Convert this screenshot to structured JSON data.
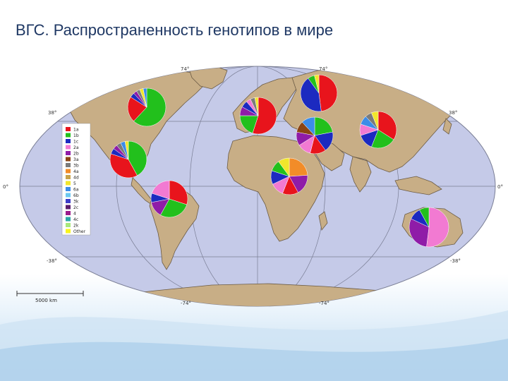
{
  "title": "ВГС. Распространенность генотипов в мире",
  "colors": {
    "ocean": "#c5cae8",
    "land": "#c8ae86",
    "border": "#6b5b45",
    "grid": "#7a7e95",
    "title": "#1f3864"
  },
  "lat_labels": {
    "top": "74°",
    "top_right": "74°",
    "upper_left": "38°",
    "upper_right": "38°",
    "equator_left": "0°",
    "equator_right": "0°",
    "lower_left": "-38°",
    "lower_right": "-38°",
    "bottom_left": "-74°",
    "bottom_right": "-74°"
  },
  "legend": {
    "items": [
      {
        "label": "1a",
        "color": "#e8141c"
      },
      {
        "label": "1b",
        "color": "#22c01c"
      },
      {
        "label": "1c",
        "color": "#1c2ac0"
      },
      {
        "label": "2a",
        "color": "#f27ad2"
      },
      {
        "label": "2b",
        "color": "#8f1ca8"
      },
      {
        "label": "3a",
        "color": "#8b4513"
      },
      {
        "label": "3b",
        "color": "#7b7b7b"
      },
      {
        "label": "4a",
        "color": "#f28c28"
      },
      {
        "label": "4d",
        "color": "#c8a24a"
      },
      {
        "label": "5",
        "color": "#f2e62c"
      },
      {
        "label": "6a",
        "color": "#3c8ce8"
      },
      {
        "label": "6b",
        "color": "#6cc8f0"
      },
      {
        "label": "3k",
        "color": "#3c3cc8"
      },
      {
        "label": "2c",
        "color": "#5a1c6c"
      },
      {
        "label": "4",
        "color": "#9c1c8c"
      },
      {
        "label": "4c",
        "color": "#2ca8a8"
      },
      {
        "label": "2k",
        "color": "#a8e87c"
      },
      {
        "label": "Other",
        "color": "#f8f41c"
      }
    ]
  },
  "scale_bar": {
    "label": "5000 km"
  },
  "pies": [
    {
      "id": "north-america-north",
      "slices": [
        {
          "color": "#22c01c",
          "value": 62
        },
        {
          "color": "#e8141c",
          "value": 22
        },
        {
          "color": "#1c2ac0",
          "value": 4
        },
        {
          "color": "#8f1ca8",
          "value": 3
        },
        {
          "color": "#7b7b7b",
          "value": 3
        },
        {
          "color": "#f2e62c",
          "value": 3
        },
        {
          "color": "#3c8ce8",
          "value": 3
        }
      ]
    },
    {
      "id": "north-america-south",
      "slices": [
        {
          "color": "#22c01c",
          "value": 42
        },
        {
          "color": "#e8141c",
          "value": 38
        },
        {
          "color": "#1c2ac0",
          "value": 5
        },
        {
          "color": "#8f1ca8",
          "value": 4
        },
        {
          "color": "#7b7b7b",
          "value": 4
        },
        {
          "color": "#3c8ce8",
          "value": 4
        },
        {
          "color": "#f2e62c",
          "value": 3
        }
      ]
    },
    {
      "id": "south-america",
      "slices": [
        {
          "color": "#e8141c",
          "value": 30
        },
        {
          "color": "#22c01c",
          "value": 28
        },
        {
          "color": "#8f1ca8",
          "value": 14
        },
        {
          "color": "#1c2ac0",
          "value": 8
        },
        {
          "color": "#f27ad2",
          "value": 20
        }
      ]
    },
    {
      "id": "western-europe",
      "slices": [
        {
          "color": "#e8141c",
          "value": 55
        },
        {
          "color": "#22c01c",
          "value": 20
        },
        {
          "color": "#8f1ca8",
          "value": 8
        },
        {
          "color": "#1c2ac0",
          "value": 6
        },
        {
          "color": "#f27ad2",
          "value": 4
        },
        {
          "color": "#7b7b7b",
          "value": 4
        },
        {
          "color": "#f2e62c",
          "value": 3
        }
      ]
    },
    {
      "id": "russia",
      "slices": [
        {
          "color": "#e8141c",
          "value": 48
        },
        {
          "color": "#1c2ac0",
          "value": 42
        },
        {
          "color": "#22c01c",
          "value": 6
        },
        {
          "color": "#f2e62c",
          "value": 4
        }
      ]
    },
    {
      "id": "middle-east",
      "slices": [
        {
          "color": "#22c01c",
          "value": 22
        },
        {
          "color": "#1c2ac0",
          "value": 18
        },
        {
          "color": "#e8141c",
          "value": 14
        },
        {
          "color": "#f27ad2",
          "value": 12
        },
        {
          "color": "#8f1ca8",
          "value": 12
        },
        {
          "color": "#8b4513",
          "value": 10
        },
        {
          "color": "#3c8ce8",
          "value": 12
        }
      ]
    },
    {
      "id": "east-asia",
      "slices": [
        {
          "color": "#e8141c",
          "value": 34
        },
        {
          "color": "#22c01c",
          "value": 22
        },
        {
          "color": "#1c2ac0",
          "value": 14
        },
        {
          "color": "#f27ad2",
          "value": 10
        },
        {
          "color": "#3c8ce8",
          "value": 8
        },
        {
          "color": "#7b7b7b",
          "value": 6
        },
        {
          "color": "#f2e62c",
          "value": 6
        }
      ]
    },
    {
      "id": "central-africa",
      "slices": [
        {
          "color": "#f28c28",
          "value": 24
        },
        {
          "color": "#8f1ca8",
          "value": 18
        },
        {
          "color": "#e8141c",
          "value": 14
        },
        {
          "color": "#f27ad2",
          "value": 12
        },
        {
          "color": "#1c2ac0",
          "value": 12
        },
        {
          "color": "#22c01c",
          "value": 10
        },
        {
          "color": "#f2e62c",
          "value": 10
        }
      ]
    },
    {
      "id": "australia",
      "slices": [
        {
          "color": "#f27ad2",
          "value": 52
        },
        {
          "color": "#8f1ca8",
          "value": 30
        },
        {
          "color": "#1c2ac0",
          "value": 10
        },
        {
          "color": "#22c01c",
          "value": 8
        }
      ]
    }
  ]
}
